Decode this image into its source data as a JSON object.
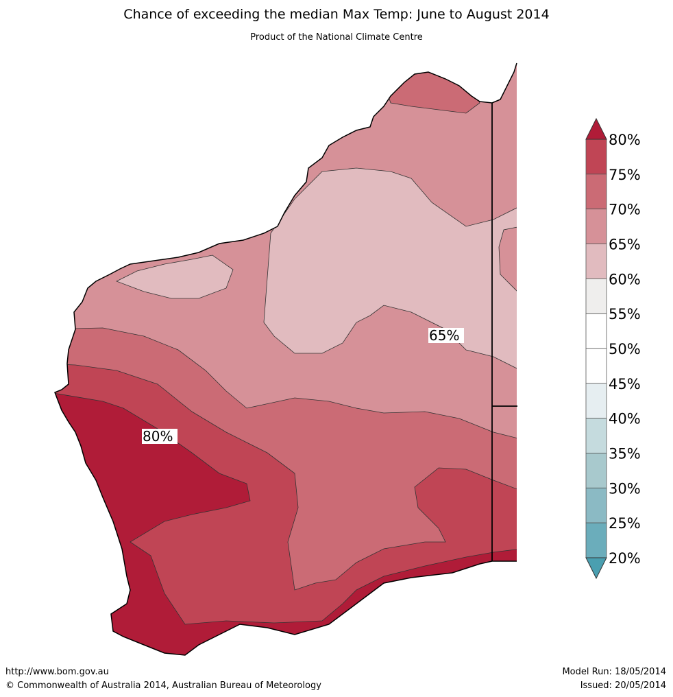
{
  "header": {
    "title": "Chance of exceeding the median Max Temp: June to August 2014",
    "subtitle": "Product of the National Climate Centre"
  },
  "map": {
    "region": "Western Australia",
    "labels": [
      "65%",
      "80%"
    ],
    "colors": {
      "c80plus": "#b01c38",
      "c75_80": "#c04555",
      "c70_75": "#cb6b75",
      "c65_70": "#d69198",
      "c60_65": "#e1bbbf",
      "c55_60": "#efeeed",
      "c50_55": "#ffffff",
      "c45_50": "#ffffff",
      "c40_45": "#e6eef1",
      "c35_40": "#c5dbde",
      "c30_35": "#a8c9cd",
      "c25_30": "#8bbac4",
      "c20_25": "#6badbb",
      "below20": "#4a9fb0"
    }
  },
  "colorbar": {
    "ticks": [
      "80%",
      "75%",
      "70%",
      "65%",
      "60%",
      "55%",
      "50%",
      "45%",
      "40%",
      "35%",
      "30%",
      "25%",
      "20%"
    ],
    "bins": [
      "#c04555",
      "#cb6b75",
      "#d69198",
      "#e1bbbf",
      "#efeeed",
      "#ffffff",
      "#ffffff",
      "#e6eef1",
      "#c5dbde",
      "#a8c9cd",
      "#8bbac4",
      "#6badbb"
    ],
    "top_arrow_color": "#b01c38",
    "bottom_arrow_color": "#4a9fb0"
  },
  "footer": {
    "url": "http://www.bom.gov.au",
    "copyright": "©  Commonwealth of Australia 2014, Australian Bureau of Meteorology",
    "model_run": "Model Run: 18/05/2014",
    "issued": "Issued: 20/05/2014"
  }
}
